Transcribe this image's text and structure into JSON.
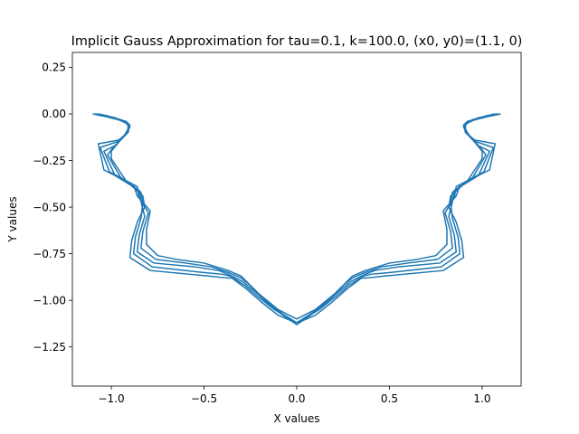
{
  "chart_data": {
    "type": "line",
    "title": "Implicit Gauss Approximation for tau=0.1, k=100.0, (x0, y0)=(1.1, 0)",
    "xlabel": "X values",
    "ylabel": "Y values",
    "xlim": [
      -1.21,
      1.21
    ],
    "ylim": [
      -1.46,
      0.33
    ],
    "xticks": [
      -1.0,
      -0.5,
      0.0,
      0.5,
      1.0
    ],
    "xtick_labels": [
      "−1.0",
      "−0.5",
      "0.0",
      "0.5",
      "1.0"
    ],
    "yticks": [
      0.25,
      0.0,
      -0.25,
      -0.5,
      -0.75,
      -1.0,
      -1.25
    ],
    "ytick_labels": [
      "0.25",
      "0.00",
      "−0.25",
      "−0.50",
      "−0.75",
      "−1.00",
      "−1.25"
    ],
    "grid": false,
    "legend": "none",
    "color": "#1f77b4",
    "series": [
      {
        "x": [
          1.1,
          1.05,
          1.0,
          0.96,
          0.92,
          0.9,
          0.91,
          0.96,
          1.07,
          1.04,
          0.88,
          0.86,
          0.79,
          0.81,
          0.81,
          0.75,
          0.65,
          0.5,
          0.37,
          0.3,
          0.27,
          0.21,
          0.1,
          0.0
        ],
        "y": [
          0.0,
          -0.01,
          -0.02,
          -0.03,
          -0.04,
          -0.06,
          -0.1,
          -0.14,
          -0.16,
          -0.3,
          -0.38,
          -0.44,
          -0.52,
          -0.62,
          -0.7,
          -0.76,
          -0.78,
          -0.8,
          -0.84,
          -0.87,
          -0.9,
          -0.96,
          -1.05,
          -1.1
        ]
      },
      {
        "x": [
          1.09,
          1.04,
          0.99,
          0.95,
          0.91,
          0.9,
          0.92,
          0.97,
          1.06,
          1.01,
          0.86,
          0.85,
          0.8,
          0.83,
          0.84,
          0.76,
          0.6,
          0.46,
          0.37,
          0.3,
          0.25,
          0.18,
          0.08,
          0.0
        ],
        "y": [
          0.0,
          -0.01,
          -0.02,
          -0.03,
          -0.05,
          -0.07,
          -0.11,
          -0.15,
          -0.18,
          -0.31,
          -0.39,
          -0.45,
          -0.53,
          -0.63,
          -0.72,
          -0.78,
          -0.8,
          -0.82,
          -0.85,
          -0.88,
          -0.92,
          -0.99,
          -1.07,
          -1.12
        ]
      },
      {
        "x": [
          1.08,
          1.03,
          0.98,
          0.94,
          0.91,
          0.91,
          0.93,
          0.98,
          1.04,
          0.98,
          0.85,
          0.84,
          0.82,
          0.85,
          0.86,
          0.77,
          0.55,
          0.42,
          0.37,
          0.29,
          0.23,
          0.15,
          0.06,
          0.0
        ],
        "y": [
          0.0,
          -0.01,
          -0.02,
          -0.04,
          -0.05,
          -0.08,
          -0.12,
          -0.17,
          -0.2,
          -0.33,
          -0.41,
          -0.47,
          -0.55,
          -0.65,
          -0.74,
          -0.8,
          -0.82,
          -0.84,
          -0.86,
          -0.9,
          -0.95,
          -1.02,
          -1.09,
          -1.12
        ]
      },
      {
        "x": [
          1.07,
          1.02,
          0.97,
          0.93,
          0.9,
          0.91,
          0.94,
          0.99,
          1.02,
          0.95,
          0.84,
          0.83,
          0.84,
          0.87,
          0.88,
          0.78,
          0.51,
          0.4,
          0.36,
          0.28,
          0.21,
          0.12,
          0.04,
          0.0
        ],
        "y": [
          0.0,
          -0.01,
          -0.03,
          -0.04,
          -0.06,
          -0.09,
          -0.13,
          -0.18,
          -0.22,
          -0.34,
          -0.42,
          -0.48,
          -0.56,
          -0.66,
          -0.75,
          -0.82,
          -0.85,
          -0.86,
          -0.87,
          -0.92,
          -0.98,
          -1.05,
          -1.1,
          -1.12
        ]
      },
      {
        "x": [
          1.06,
          1.01,
          0.96,
          0.92,
          0.9,
          0.92,
          0.95,
          1.0,
          1.0,
          0.92,
          0.83,
          0.82,
          0.86,
          0.89,
          0.9,
          0.79,
          0.47,
          0.38,
          0.35,
          0.27,
          0.19,
          0.1,
          0.03,
          0.0
        ],
        "y": [
          0.0,
          -0.02,
          -0.03,
          -0.05,
          -0.07,
          -0.1,
          -0.14,
          -0.2,
          -0.24,
          -0.36,
          -0.44,
          -0.5,
          -0.58,
          -0.68,
          -0.77,
          -0.84,
          -0.87,
          -0.88,
          -0.88,
          -0.94,
          -1.01,
          -1.08,
          -1.11,
          -1.13
        ]
      }
    ]
  }
}
